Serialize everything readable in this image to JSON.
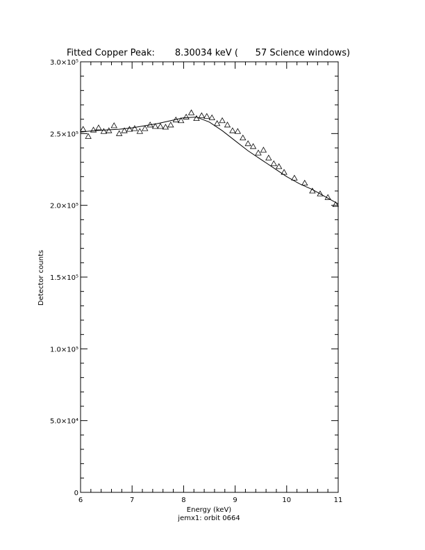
{
  "chart_data": {
    "type": "scatter",
    "title": "Fitted Copper Peak:       8.30034 keV (      57 Science windows)",
    "x_label": "Energy (keV)",
    "y_label": "Detector counts",
    "footer": "jemx1: orbit 0664",
    "xlim": [
      6,
      11
    ],
    "xticks": [
      6,
      7,
      8,
      9,
      10,
      11
    ],
    "ylim": [
      0,
      300000
    ],
    "yticks": [
      0,
      {
        "value": 50000,
        "label": "5.0×10⁴"
      },
      {
        "value": 100000,
        "label": "1.0×10⁵"
      },
      {
        "value": 150000,
        "label": "1.5×10⁵"
      },
      {
        "value": 200000,
        "label": "2.0×10⁵"
      },
      {
        "value": 250000,
        "label": "2.5×10⁵"
      },
      {
        "value": 300000,
        "label": "3.0×10⁵"
      }
    ],
    "color": "#000000",
    "series": [
      {
        "kind": "points",
        "x": [
          6.05,
          6.15,
          6.25,
          6.35,
          6.45,
          6.55,
          6.65,
          6.75,
          6.85,
          6.95,
          7.05,
          7.15,
          7.25,
          7.35,
          7.45,
          7.55,
          7.65,
          7.75,
          7.85,
          7.95,
          8.05,
          8.15,
          8.25,
          8.35,
          8.45,
          8.55,
          8.65,
          8.75,
          8.85,
          8.95,
          9.05,
          9.15,
          9.25,
          9.35,
          9.45,
          9.55,
          9.65,
          9.75,
          9.85,
          9.95,
          10.15,
          10.35,
          10.5,
          10.65,
          10.8,
          10.95
        ],
        "values": [
          253000,
          248000,
          252500,
          254000,
          251500,
          252000,
          255500,
          250000,
          252000,
          253000,
          253500,
          251500,
          253500,
          256000,
          255000,
          255000,
          254500,
          256000,
          259500,
          259000,
          261500,
          264500,
          260500,
          262500,
          262000,
          261000,
          257000,
          259000,
          256000,
          252000,
          251500,
          247000,
          243000,
          241000,
          236500,
          238500,
          233000,
          229000,
          227000,
          223000,
          219000,
          215500,
          210000,
          208000,
          205500,
          200500
        ]
      },
      {
        "kind": "fit",
        "x": [
          6,
          6.25,
          6.5,
          6.75,
          7,
          7.25,
          7.5,
          7.75,
          8,
          8.25,
          8.5,
          8.75,
          9,
          9.25,
          9.5,
          9.75,
          10,
          10.25,
          10.5,
          10.75,
          11
        ],
        "values": [
          251000,
          252000,
          252500,
          253000,
          254000,
          255500,
          257000,
          259000,
          261000,
          261500,
          258000,
          252000,
          245000,
          238000,
          232000,
          226000,
          220000,
          215000,
          211000,
          206000,
          201000
        ]
      }
    ]
  }
}
